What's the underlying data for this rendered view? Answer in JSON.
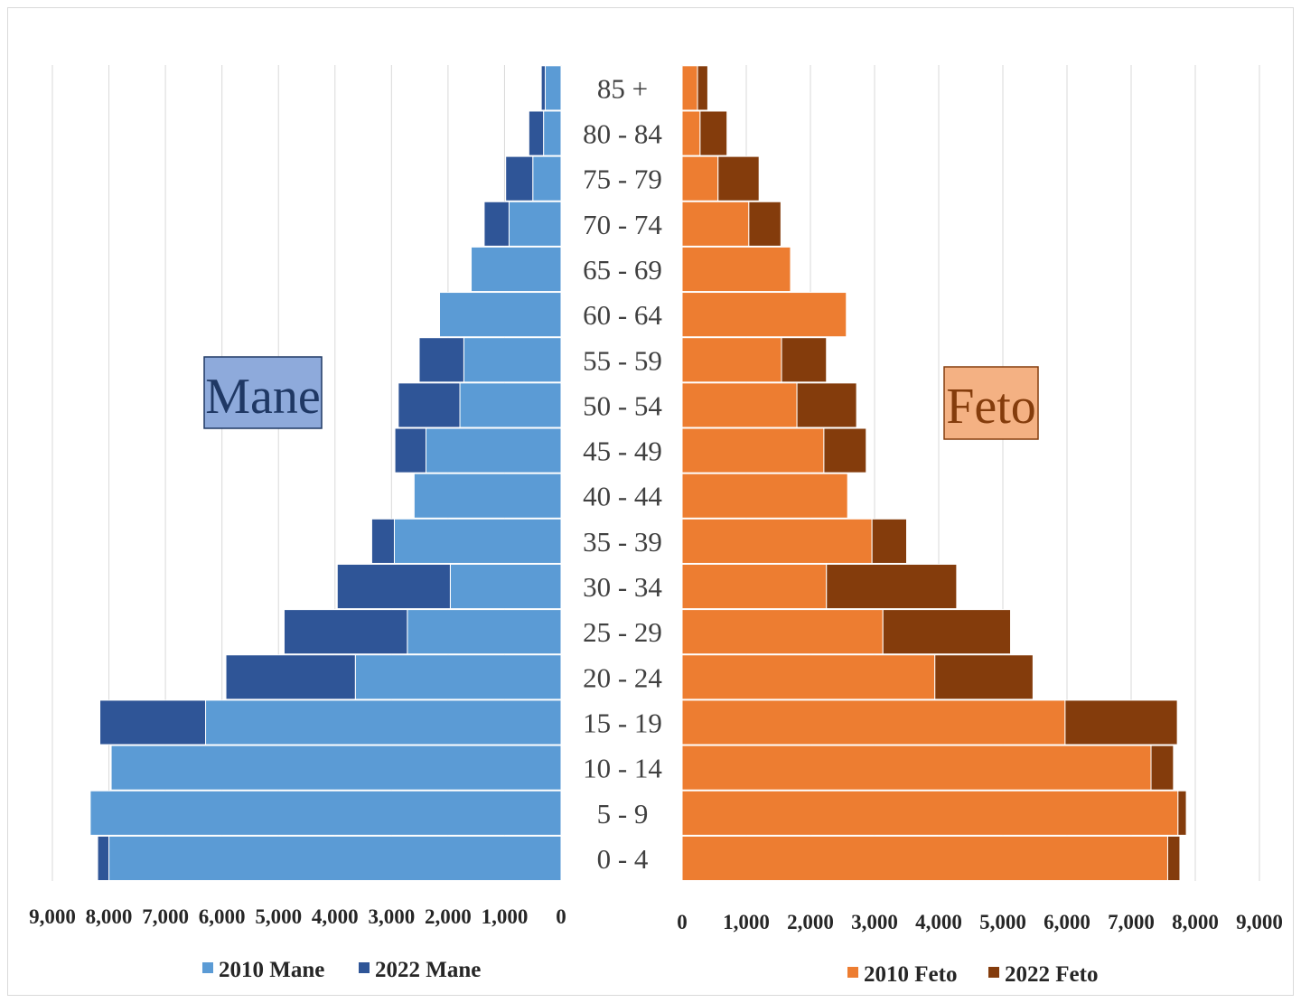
{
  "chart_data": [
    {
      "type": "bar",
      "orientation": "horizontal",
      "stacked": true,
      "side": "left",
      "panel_label": "Mane",
      "categories": [
        "0 - 4",
        "5 - 9",
        "10 - 14",
        "15 - 19",
        "20 - 24",
        "25 - 29",
        "30 - 34",
        "35 - 39",
        "40 - 44",
        "45 - 49",
        "50 - 54",
        "55 - 59",
        "60 - 64",
        "65 - 69",
        "70 - 74",
        "75 - 79",
        "80 - 84",
        "85 +"
      ],
      "series": [
        {
          "name": "2010 Mane",
          "color": "#5b9bd5",
          "values": [
            8000,
            8330,
            7960,
            6290,
            3640,
            2720,
            1960,
            2950,
            2600,
            2390,
            1790,
            1720,
            2150,
            1590,
            920,
            500,
            310,
            280
          ]
        },
        {
          "name": "2022 Mane",
          "color": "#2f5597",
          "values": [
            200,
            0,
            0,
            1870,
            2290,
            2180,
            2000,
            400,
            0,
            550,
            1090,
            790,
            0,
            0,
            440,
            480,
            260,
            70
          ]
        }
      ],
      "xticks": [
        "9,000",
        "8,000",
        "7,000",
        "6,000",
        "5,000",
        "4,000",
        "3,000",
        "2,000",
        "1,000",
        "0"
      ],
      "xlim": [
        0,
        9000
      ],
      "x_reversed": true,
      "grid": true,
      "legend_position": "bottom"
    },
    {
      "type": "bar",
      "orientation": "horizontal",
      "stacked": true,
      "side": "right",
      "panel_label": "Feto",
      "categories": [
        "0 - 4",
        "5 - 9",
        "10 - 14",
        "15 - 19",
        "20 - 24",
        "25 - 29",
        "30 - 34",
        "35 - 39",
        "40 - 44",
        "45 - 49",
        "50 - 54",
        "55 - 59",
        "60 - 64",
        "65 - 69",
        "70 - 74",
        "75 - 79",
        "80 - 84",
        "85 +"
      ],
      "series": [
        {
          "name": "2010 Feto",
          "color": "#ed7d31",
          "values": [
            7570,
            7730,
            7310,
            5970,
            3940,
            3130,
            2250,
            2960,
            2580,
            2210,
            1790,
            1550,
            2560,
            1690,
            1040,
            560,
            280,
            240
          ]
        },
        {
          "name": "2022 Feto",
          "color": "#843c0c",
          "values": [
            190,
            130,
            350,
            1750,
            1530,
            1990,
            2030,
            540,
            0,
            660,
            930,
            700,
            0,
            0,
            500,
            640,
            420,
            160
          ]
        }
      ],
      "xticks": [
        "0",
        "1,000",
        "2,000",
        "3,000",
        "4,000",
        "5,000",
        "6,000",
        "7,000",
        "8,000",
        "9,000"
      ],
      "xlim": [
        0,
        9000
      ],
      "grid": true,
      "legend_position": "bottom"
    }
  ],
  "legend": {
    "mane_2010": "2010 Mane",
    "mane_2022": "2022 Mane",
    "feto_2010": "2010 Feto",
    "feto_2022": "2022 Feto"
  }
}
